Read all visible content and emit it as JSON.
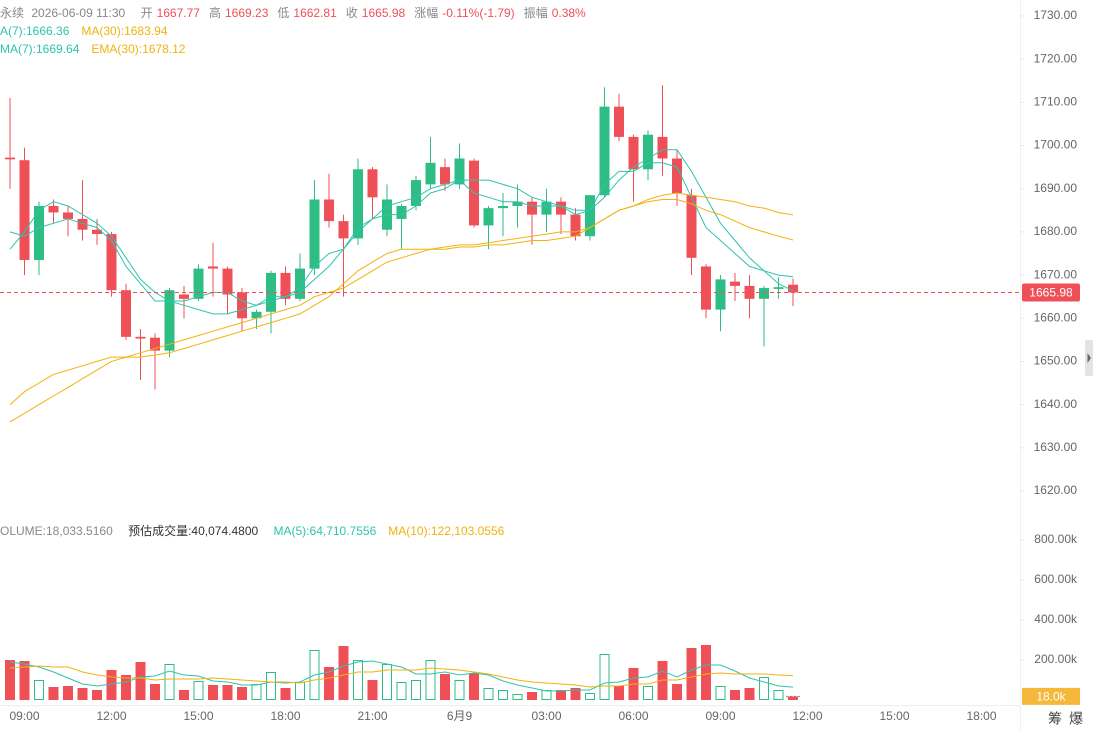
{
  "header": {
    "symbol": "永续",
    "datetime": "2026-06-09 11:30",
    "stats": [
      {
        "label": "开",
        "value": "1667.77"
      },
      {
        "label": "高",
        "value": "1669.23"
      },
      {
        "label": "低",
        "value": "1662.81"
      },
      {
        "label": "收",
        "value": "1665.98"
      },
      {
        "label": "涨幅",
        "value": "-0.11%(-1.79)"
      },
      {
        "label": "振幅",
        "value": "0.38%"
      }
    ]
  },
  "chart_data": [
    {
      "type": "candlestick",
      "up_color": "#2ebd85",
      "down_color": "#ef5058",
      "open": [
        1697.2,
        1696.6,
        1673.5,
        1686,
        1684.5,
        1683,
        1680.5,
        1679.5,
        1666.5,
        1655.7,
        1655.5,
        1652.5,
        1665.5,
        1664.5,
        1672,
        1671.5,
        1666,
        1660,
        1661.5,
        1670.5,
        1664.5,
        1671.5,
        1687.5,
        1682.5,
        1678.5,
        1694.5,
        1680.5,
        1683,
        1686,
        1691,
        1695,
        1691,
        1696.5,
        1681.5,
        1685.5,
        1686,
        1687,
        1684,
        1687,
        1684,
        1679,
        1688.5,
        1709,
        1702,
        1694.5,
        1702,
        1697,
        1688.5,
        1672,
        1662,
        1668.5,
        1667.5,
        1664.5,
        1666.8,
        1667.77
      ],
      "high": [
        1711,
        1699.5,
        1687,
        1687.5,
        1686,
        1692,
        1683,
        1680,
        1668,
        1657.5,
        1656.5,
        1667,
        1667.5,
        1672.5,
        1677.5,
        1672,
        1667,
        1662,
        1671,
        1672,
        1675,
        1692,
        1693.5,
        1684,
        1697,
        1695,
        1691,
        1686.5,
        1693,
        1702,
        1697,
        1700.5,
        1697,
        1686,
        1689,
        1691,
        1688,
        1690,
        1688,
        1685.5,
        1688.5,
        1713.5,
        1712,
        1702.5,
        1703.5,
        1714,
        1699,
        1690,
        1672.5,
        1670,
        1670.5,
        1670,
        1667.5,
        1669.5,
        1669.23
      ],
      "low": [
        1690,
        1670,
        1670,
        1682,
        1679,
        1678,
        1677,
        1665,
        1655,
        1645.7,
        1643.5,
        1651,
        1660,
        1664,
        1665,
        1661,
        1657,
        1657.5,
        1656.5,
        1663,
        1664,
        1670,
        1681,
        1665,
        1677,
        1683,
        1679,
        1676,
        1685,
        1690,
        1689.5,
        1690,
        1681,
        1676,
        1679,
        1681,
        1677,
        1680,
        1679.5,
        1678,
        1678,
        1688,
        1701,
        1687,
        1692,
        1693,
        1686,
        1670,
        1660,
        1657,
        1664,
        1660,
        1653.5,
        1664.5,
        1662.81
      ],
      "close": [
        1696.8,
        1673.5,
        1686,
        1684.5,
        1683,
        1680.5,
        1679.5,
        1666.5,
        1655.7,
        1655.3,
        1652.5,
        1666.5,
        1664.5,
        1671.5,
        1671.5,
        1665.5,
        1660,
        1661.5,
        1670.5,
        1664.5,
        1671.5,
        1687.5,
        1682.5,
        1678.5,
        1694.5,
        1688,
        1687.5,
        1686,
        1692,
        1696,
        1691,
        1697,
        1681.5,
        1685.5,
        1686,
        1687,
        1684,
        1687,
        1684,
        1679,
        1688.5,
        1709,
        1702,
        1694.5,
        1702.5,
        1697,
        1689,
        1674,
        1662,
        1669,
        1667.5,
        1664.5,
        1667,
        1667.2,
        1665.98
      ],
      "overlays": [
        {
          "label": "A(7):1666.36",
          "color": "#2ec4ad",
          "values": [
            1676,
            1680,
            1685,
            1687,
            1686,
            1684,
            1682,
            1679,
            1674,
            1669,
            1666,
            1664,
            1663,
            1662,
            1661,
            1661,
            1662,
            1663,
            1664,
            1665,
            1666,
            1669,
            1672,
            1676,
            1680,
            1683,
            1686,
            1687,
            1688,
            1690,
            1691,
            1692,
            1692,
            1692,
            1691,
            1690,
            1688,
            1687,
            1686,
            1685,
            1685,
            1688,
            1692,
            1695,
            1697,
            1699,
            1699,
            1694,
            1688,
            1682,
            1678,
            1674,
            1671,
            1668,
            1666.36
          ]
        },
        {
          "label": "MA(30):1683.94",
          "color": "#f2b20f",
          "values": [
            1636,
            1638,
            1640,
            1642,
            1644,
            1646,
            1648,
            1650,
            1651,
            1652,
            1653,
            1654,
            1655,
            1656,
            1657,
            1658,
            1659,
            1660,
            1661,
            1662,
            1663,
            1665,
            1666,
            1667,
            1669,
            1671,
            1673,
            1674,
            1675,
            1676,
            1676.5,
            1677,
            1677,
            1677.5,
            1678,
            1678.5,
            1679,
            1679.5,
            1680,
            1680,
            1681,
            1683,
            1685,
            1686,
            1687.5,
            1688.5,
            1689,
            1688.5,
            1688,
            1687.5,
            1687,
            1686,
            1685.5,
            1684.5,
            1683.94
          ]
        },
        {
          "label": "MA(7):1669.64",
          "color": "#2ec4ad",
          "values": [
            1680,
            1679,
            1681,
            1682,
            1683,
            1682,
            1681,
            1678,
            1672,
            1668,
            1664,
            1664,
            1664,
            1665,
            1666,
            1666,
            1664,
            1663,
            1665,
            1665,
            1667,
            1672,
            1675,
            1676,
            1681,
            1683,
            1684,
            1684,
            1686,
            1689,
            1690,
            1692,
            1689,
            1688,
            1687,
            1687,
            1686,
            1686,
            1686,
            1684,
            1685,
            1691,
            1694,
            1694,
            1696,
            1696,
            1695,
            1688,
            1681,
            1678,
            1675,
            1672,
            1671,
            1670,
            1669.64
          ]
        },
        {
          "label": "EMA(30):1678.12",
          "color": "#f2b20f",
          "values": [
            1640,
            1643,
            1645,
            1647,
            1648,
            1649,
            1650,
            1651,
            1651,
            1651,
            1651.5,
            1652,
            1653,
            1654,
            1655,
            1656,
            1657,
            1658,
            1659,
            1660,
            1661,
            1663,
            1665,
            1668,
            1671,
            1673,
            1675,
            1676,
            1676,
            1676,
            1676,
            1676.5,
            1676.5,
            1677,
            1677,
            1677.5,
            1678,
            1678,
            1678.5,
            1679,
            1681,
            1683,
            1685,
            1686,
            1687,
            1687.5,
            1687.5,
            1686.5,
            1685,
            1684,
            1682.5,
            1681,
            1680,
            1679,
            1678.12
          ]
        }
      ],
      "last_price": 1665.98,
      "ylim": [
        1615.6,
        1733.7
      ],
      "yticks": [
        {
          "value": 1730,
          "label": "1730.00"
        },
        {
          "value": 1720,
          "label": "1720.00"
        },
        {
          "value": 1710,
          "label": "1710.00"
        },
        {
          "value": 1700,
          "label": "1700.00"
        },
        {
          "value": 1690,
          "label": "1690.00"
        },
        {
          "value": 1680,
          "label": "1680.00"
        },
        {
          "value": 1670,
          "label": "1670.00"
        },
        {
          "value": 1660,
          "label": "1660.00"
        },
        {
          "value": 1650,
          "label": "1650.00"
        },
        {
          "value": 1640,
          "label": "1640.00"
        },
        {
          "value": 1630,
          "label": "1630.00"
        },
        {
          "value": 1620,
          "label": "1620.00"
        }
      ]
    },
    {
      "type": "bar",
      "volume_label": "OLUME:18,033.5160",
      "estimate_label": "预估成交量:40,074.4800",
      "categories": [
        null,
        "09:00",
        null,
        null,
        null,
        null,
        null,
        "12:00",
        null,
        null,
        null,
        null,
        null,
        "15:00",
        null,
        null,
        null,
        null,
        null,
        "18:00",
        null,
        null,
        null,
        null,
        null,
        "21:00",
        null,
        null,
        null,
        null,
        null,
        "6月9",
        null,
        null,
        null,
        null,
        null,
        "03:00",
        null,
        null,
        null,
        null,
        null,
        "06:00",
        null,
        null,
        null,
        null,
        null,
        "09:00",
        null,
        null,
        null,
        null,
        null,
        "12:00",
        null,
        null,
        null,
        null,
        null,
        "15:00",
        null,
        null,
        null,
        null,
        null,
        "18:00"
      ],
      "values": [
        200000,
        195000,
        100000,
        65000,
        70000,
        60000,
        50000,
        150000,
        125000,
        190000,
        80000,
        180000,
        50000,
        95000,
        75000,
        75000,
        65000,
        80000,
        140000,
        60000,
        90000,
        250000,
        165000,
        270000,
        200000,
        100000,
        180000,
        90000,
        100000,
        200000,
        130000,
        100000,
        135000,
        60000,
        50000,
        30000,
        40000,
        50000,
        50000,
        60000,
        35000,
        230000,
        70000,
        160000,
        70000,
        195000,
        80000,
        260000,
        275000,
        70000,
        50000,
        60000,
        115000,
        50000,
        18033.516,
        null,
        null,
        null,
        null,
        null,
        null,
        null,
        null,
        null,
        null,
        null,
        null,
        null
      ],
      "overlays": [
        {
          "label": "MA(5):64,710.7556",
          "color": "#2ec4ad",
          "values": [
            190000,
            180000,
            165000,
            140000,
            110000,
            80000,
            70000,
            80000,
            90000,
            115000,
            120000,
            145000,
            125000,
            120000,
            95000,
            90000,
            75000,
            75000,
            90000,
            85000,
            90000,
            125000,
            140000,
            170000,
            190000,
            195000,
            180000,
            165000,
            130000,
            130000,
            140000,
            125000,
            135000,
            125000,
            95000,
            75000,
            60000,
            45000,
            45000,
            50000,
            50000,
            85000,
            90000,
            110000,
            115000,
            145000,
            115000,
            150000,
            175000,
            175000,
            145000,
            110000,
            90000,
            70000,
            64710.7556,
            null,
            null,
            null,
            null,
            null,
            null,
            null,
            null,
            null,
            null,
            null,
            null,
            null
          ]
        },
        {
          "label": "MA(10):122,103.0556",
          "color": "#f2b20f",
          "values": [
            160000,
            165000,
            170000,
            165000,
            165000,
            140000,
            125000,
            115000,
            110000,
            110000,
            100000,
            105000,
            105000,
            105000,
            110000,
            105000,
            100000,
            95000,
            90000,
            90000,
            85000,
            100000,
            110000,
            125000,
            140000,
            140000,
            150000,
            150000,
            150000,
            160000,
            155000,
            150000,
            140000,
            130000,
            115000,
            100000,
            90000,
            85000,
            80000,
            75000,
            65000,
            70000,
            70000,
            80000,
            80000,
            100000,
            100000,
            115000,
            130000,
            135000,
            130000,
            130000,
            130000,
            125000,
            122103.0556,
            null,
            null,
            null,
            null,
            null,
            null,
            null,
            null,
            null,
            null,
            null,
            null,
            null
          ]
        }
      ],
      "last_value_label": "18.0k",
      "last_color": "#f5b83a",
      "ylim": [
        0,
        875000
      ],
      "yticks": [
        {
          "value": 800000,
          "label": "800.00k"
        },
        {
          "value": 600000,
          "label": "600.00k"
        },
        {
          "value": 400000,
          "label": "400.00k"
        },
        {
          "value": 200000,
          "label": "200.00k"
        }
      ]
    }
  ],
  "footer": [
    "筹",
    "爆"
  ]
}
